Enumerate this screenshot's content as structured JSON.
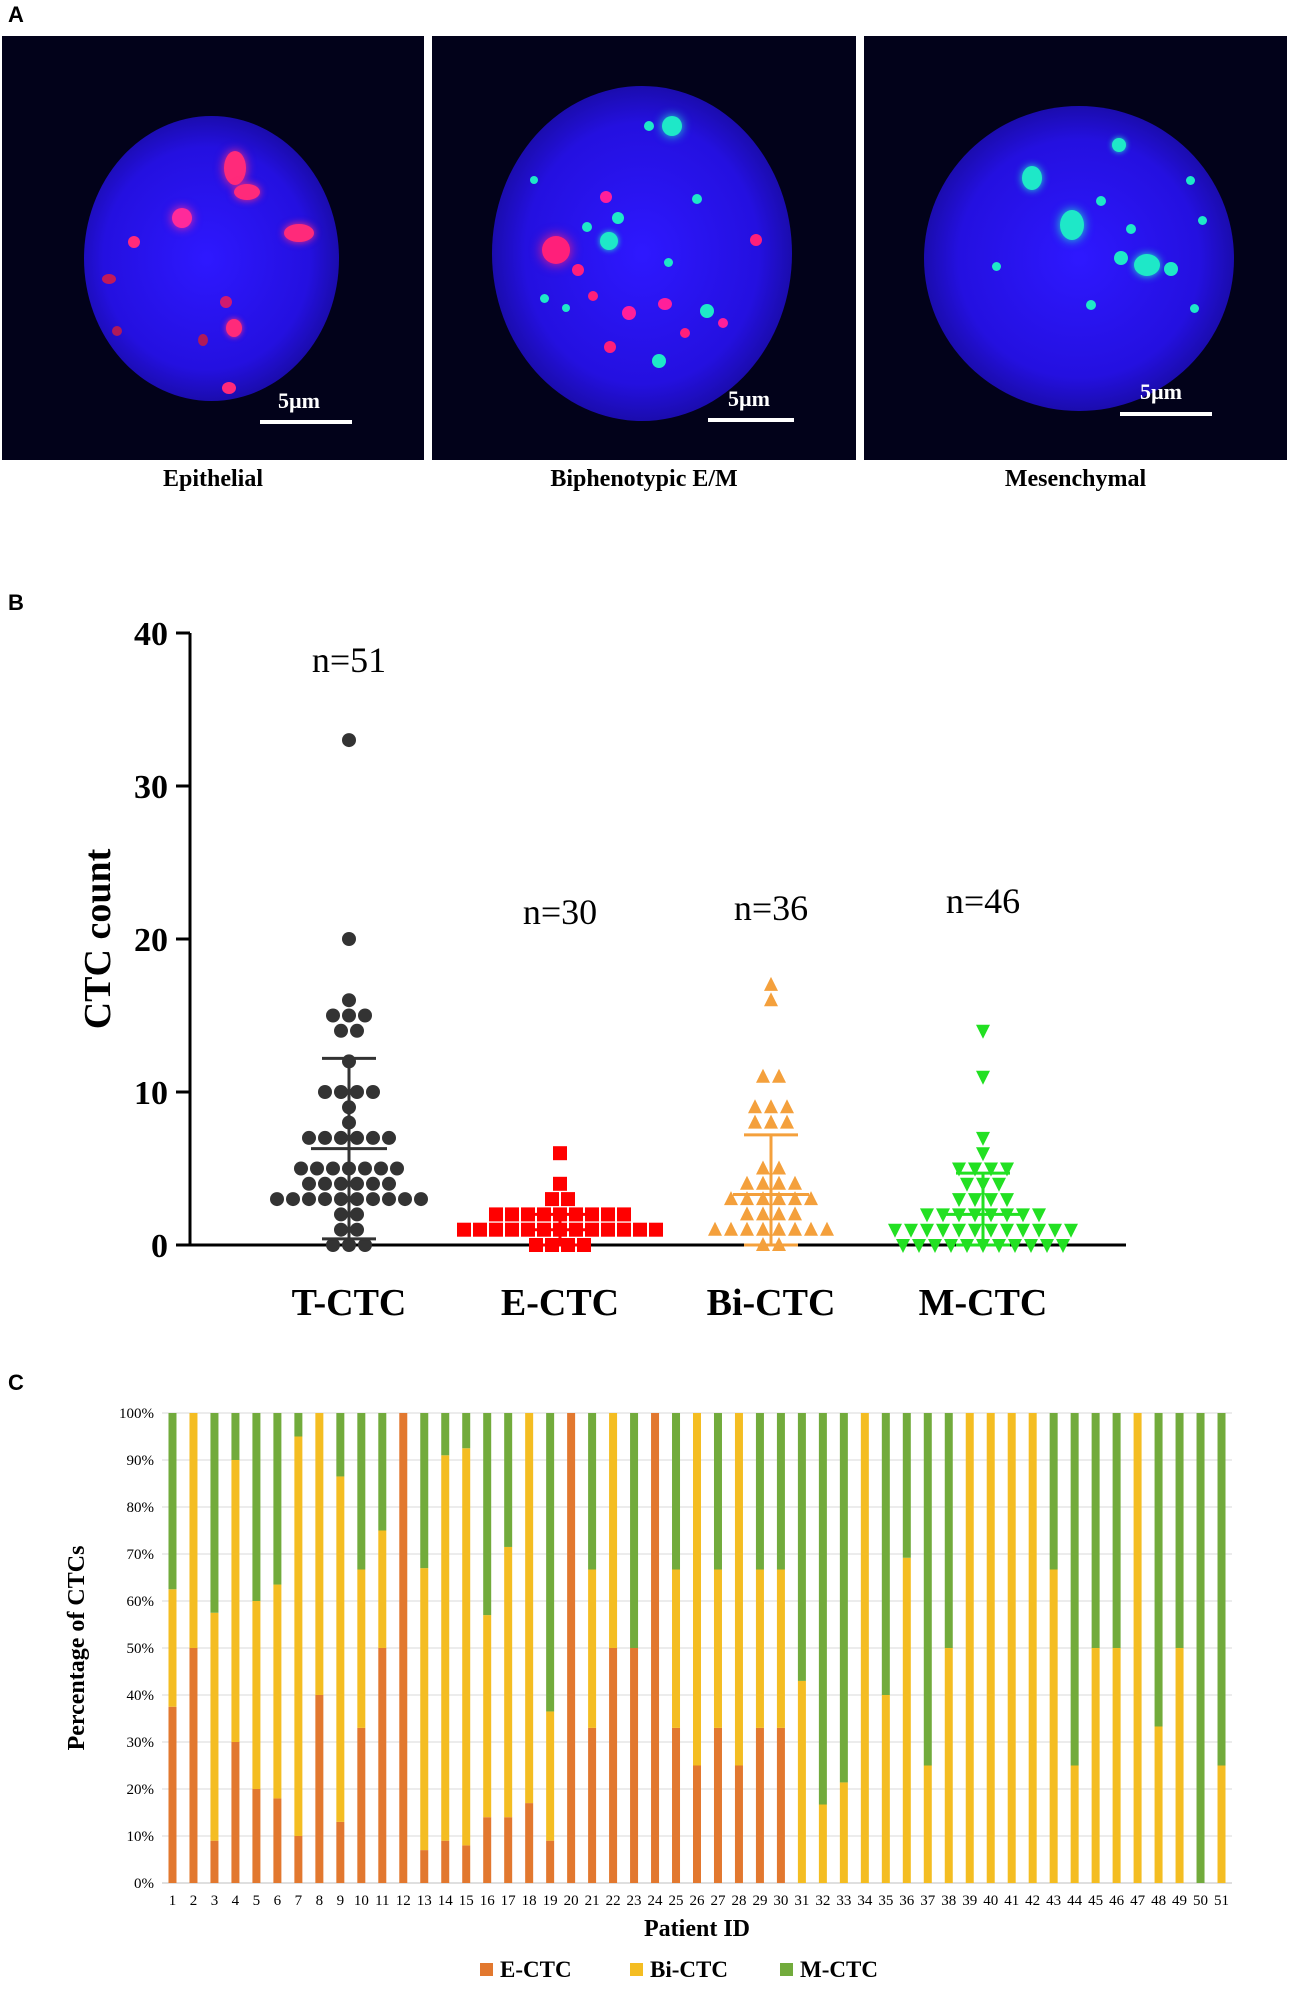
{
  "panels": {
    "a": {
      "letter": "A"
    },
    "b": {
      "letter": "B"
    },
    "c": {
      "letter": "C"
    }
  },
  "images": [
    {
      "caption": "Epithelial",
      "scale": "5µm"
    },
    {
      "caption": "Biphenotypic E/M",
      "scale": "5µm"
    },
    {
      "caption": "Mesenchymal",
      "scale": "5µm"
    }
  ],
  "colors": {
    "nucleus": "#2a10e6",
    "epithelial_marker": "#ff1f7a",
    "mesenchymal_marker": "#1ee8c8",
    "t_ctc": "#333333",
    "e_ctc": "#ff0000",
    "bi_ctc": "#f4a03c",
    "m_ctc": "#22e022",
    "e_bar": "#e2782f",
    "bi_bar": "#f4bd22",
    "m_bar": "#72ab3c"
  },
  "chart_data": [
    {
      "type": "scatter",
      "title": "",
      "xlabel": "",
      "ylabel": "CTC count",
      "ylim": [
        0,
        40
      ],
      "yticks": [
        "0",
        "10",
        "20",
        "30",
        "40"
      ],
      "series": [
        {
          "name": "T-CTC",
          "n_label": "n=51",
          "mean": 6.3,
          "sd_upper": 12.2,
          "sd_lower": 0.4,
          "values": [
            33,
            20,
            16,
            15,
            15,
            15,
            14,
            14,
            12,
            10,
            10,
            10,
            10,
            9,
            8,
            7,
            7,
            7,
            7,
            7,
            7,
            5,
            5,
            5,
            5,
            5,
            5,
            5,
            4,
            4,
            4,
            4,
            4,
            4,
            3,
            3,
            3,
            3,
            3,
            3,
            3,
            3,
            3,
            3,
            2,
            2,
            1,
            1,
            0,
            0,
            0
          ]
        },
        {
          "name": "E-CTC",
          "n_label": "n=30",
          "mean": 1.0,
          "sd_upper": 2.0,
          "sd_lower": 0.0,
          "values": [
            6,
            4,
            3,
            3,
            2,
            2,
            2,
            2,
            2,
            2,
            2,
            2,
            2,
            1,
            1,
            1,
            1,
            1,
            1,
            1,
            1,
            1,
            1,
            1,
            1,
            1,
            0,
            0,
            0,
            0
          ]
        },
        {
          "name": "Bi-CTC",
          "n_label": "n=36",
          "mean": 3.3,
          "sd_upper": 7.2,
          "sd_lower": 0.0,
          "values": [
            17,
            16,
            11,
            11,
            9,
            9,
            9,
            8,
            8,
            8,
            5,
            5,
            4,
            4,
            4,
            4,
            3,
            3,
            3,
            3,
            3,
            3,
            2,
            2,
            2,
            2,
            1,
            1,
            1,
            1,
            1,
            1,
            1,
            1,
            0,
            0
          ]
        },
        {
          "name": "M-CTC",
          "n_label": "n=46",
          "mean": 2.0,
          "sd_upper": 4.7,
          "sd_lower": 0.0,
          "values": [
            14,
            11,
            7,
            6,
            5,
            5,
            5,
            5,
            4,
            4,
            4,
            3,
            3,
            3,
            3,
            2,
            2,
            2,
            2,
            2,
            2,
            2,
            2,
            1,
            1,
            1,
            1,
            1,
            1,
            1,
            1,
            1,
            1,
            1,
            1,
            0,
            0,
            0,
            0,
            0,
            0,
            0,
            0,
            0,
            0,
            0
          ]
        }
      ]
    },
    {
      "type": "bar",
      "stacked": true,
      "title": "",
      "xlabel": "Patient ID",
      "ylabel": "Percentage of CTCs",
      "ylim": [
        0,
        100
      ],
      "yticks": [
        "0%",
        "10%",
        "20%",
        "30%",
        "40%",
        "50%",
        "60%",
        "70%",
        "80%",
        "90%",
        "100%"
      ],
      "categories": [
        "1",
        "2",
        "3",
        "4",
        "5",
        "6",
        "7",
        "8",
        "9",
        "10",
        "11",
        "12",
        "13",
        "14",
        "15",
        "16",
        "17",
        "18",
        "19",
        "20",
        "21",
        "22",
        "23",
        "24",
        "25",
        "26",
        "27",
        "28",
        "29",
        "30",
        "31",
        "32",
        "33",
        "34",
        "35",
        "36",
        "37",
        "38",
        "39",
        "40",
        "41",
        "42",
        "43",
        "44",
        "45",
        "46",
        "47",
        "48",
        "49",
        "50",
        "51"
      ],
      "series": [
        {
          "name": "E-CTC",
          "values": [
            37.5,
            50,
            9,
            30,
            20,
            18,
            10,
            40,
            13,
            33,
            50,
            100,
            7,
            9,
            8,
            14,
            14,
            17,
            9,
            100,
            33,
            50,
            50,
            100,
            33,
            25,
            33,
            25,
            33,
            33,
            0,
            0,
            0,
            0,
            0,
            0,
            0,
            0,
            0,
            0,
            0,
            0,
            0,
            0,
            0,
            0,
            0,
            0,
            0,
            0,
            0
          ]
        },
        {
          "name": "Bi-CTC",
          "values": [
            25,
            50,
            48.5,
            60,
            40,
            45.5,
            85,
            60,
            73.5,
            33.7,
            25,
            0,
            60,
            82,
            84.5,
            43,
            57.5,
            83,
            27.5,
            0,
            33.7,
            50,
            0,
            0,
            33.7,
            75,
            33.7,
            75,
            33.7,
            33.7,
            43,
            16.7,
            21.4,
            100,
            40,
            69.2,
            25,
            50,
            100,
            100,
            100,
            100,
            66.7,
            25,
            50,
            50,
            100,
            33.3,
            50,
            0,
            25
          ]
        },
        {
          "name": "M-CTC",
          "values": [
            37.5,
            0,
            42.5,
            10,
            40,
            36.5,
            5,
            0,
            13.5,
            33.3,
            25,
            0,
            33,
            9,
            7.5,
            43,
            28.5,
            0,
            63.5,
            0,
            33.3,
            0,
            50,
            0,
            33.3,
            0,
            33.3,
            0,
            33.3,
            33.3,
            57,
            83.3,
            78.6,
            0,
            60,
            30.8,
            75,
            50,
            0,
            0,
            0,
            0,
            33.3,
            75,
            50,
            50,
            0,
            66.7,
            50,
            100,
            75
          ]
        }
      ],
      "legend": [
        "E-CTC",
        "Bi-CTC",
        "M-CTC"
      ],
      "legend_position": "bottom"
    }
  ]
}
